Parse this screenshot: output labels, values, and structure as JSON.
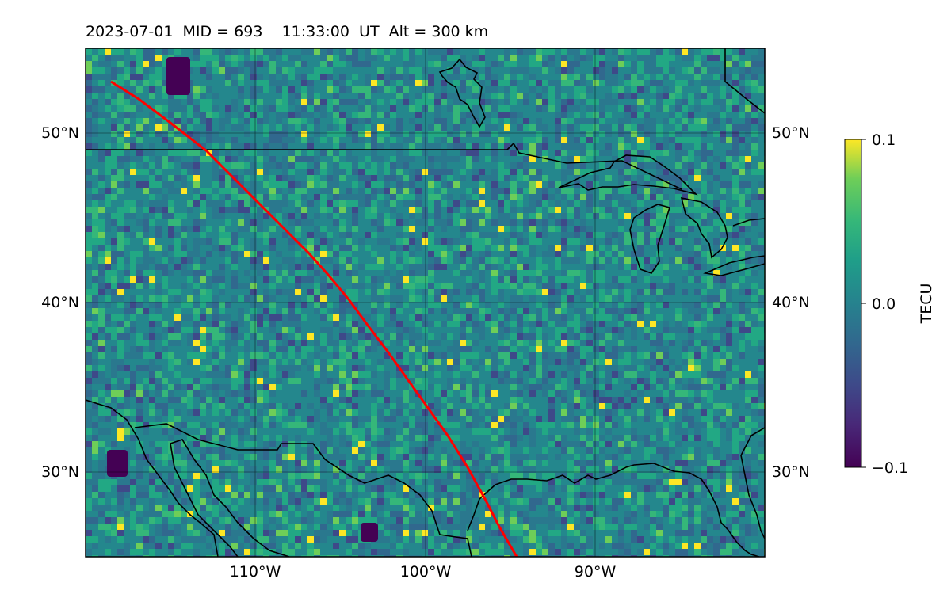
{
  "header": {
    "date": "2023-07-01",
    "mid": "MID = 693",
    "time": "11:33:00",
    "ut": "UT",
    "alt": "Alt = 300 km"
  },
  "map": {
    "lat_labels_left": [
      "50°N",
      "40°N",
      "30°N"
    ],
    "lat_labels_right": [
      "50°N",
      "40°N",
      "30°N"
    ],
    "lon_labels": [
      "110°W",
      "100°W",
      "90°W"
    ],
    "track_color": "#ff0000",
    "coastline_color": "#000000"
  },
  "colorbar": {
    "label": "TECU",
    "ticks": [
      "0.1",
      "0.0",
      "−0.1"
    ],
    "range": [
      -0.1,
      0.1
    ],
    "colormap": "viridis"
  }
}
